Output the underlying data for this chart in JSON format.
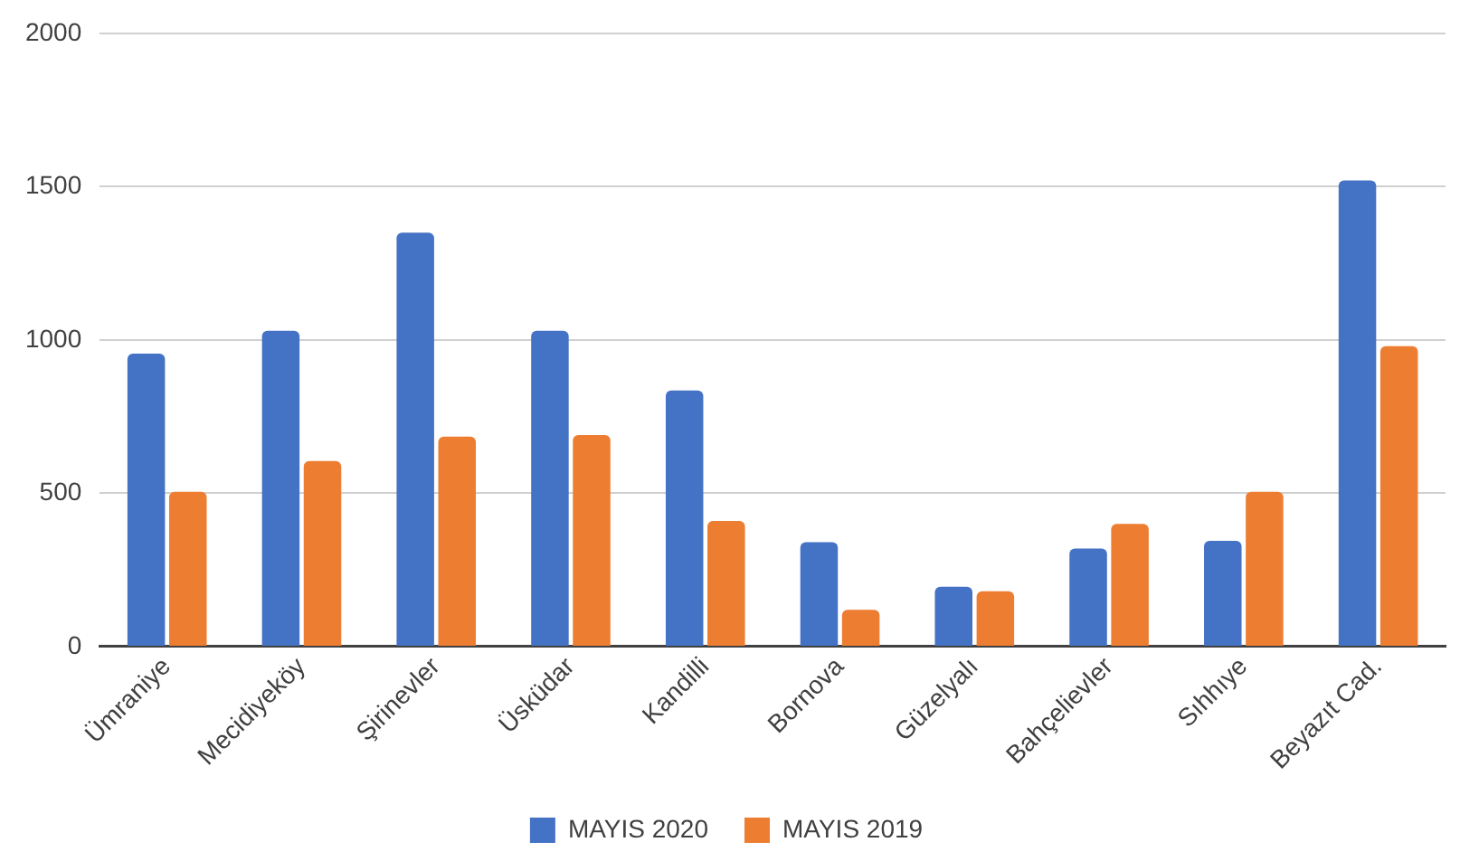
{
  "chart_data": {
    "type": "bar",
    "categories": [
      "Ümraniye",
      "Mecidiyeköy",
      "Şirinevler",
      "Üsküdar",
      "Kandilli",
      "Bornova",
      "Güzelyalı",
      "Bahçelievler",
      "Sıhhıye",
      "Beyazıt Cad."
    ],
    "series": [
      {
        "name": "MAYIS 2020",
        "color": "#4472c4",
        "values": [
          955,
          1030,
          1350,
          1030,
          835,
          340,
          195,
          320,
          345,
          1520
        ]
      },
      {
        "name": "MAYIS 2019",
        "color": "#ed7d31",
        "values": [
          505,
          605,
          685,
          690,
          410,
          120,
          180,
          400,
          505,
          980
        ]
      }
    ],
    "ylim": [
      0,
      2000
    ],
    "yticks": [
      0,
      500,
      1000,
      1500,
      2000
    ],
    "grid": "y",
    "legend": "bottom"
  }
}
